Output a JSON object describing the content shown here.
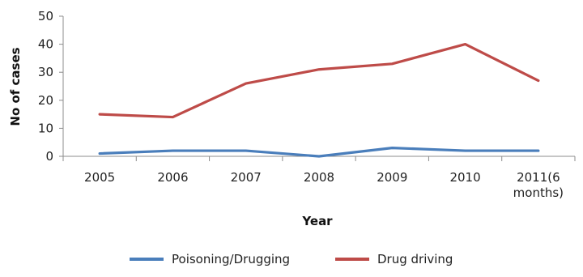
{
  "chart_data": {
    "type": "line",
    "categories": [
      "2005",
      "2006",
      "2007",
      "2008",
      "2009",
      "2010",
      "2011(6 months)"
    ],
    "category_lines": [
      [
        "2005"
      ],
      [
        "2006"
      ],
      [
        "2007"
      ],
      [
        "2008"
      ],
      [
        "2009"
      ],
      [
        "2010"
      ],
      [
        "2011(6",
        "months)"
      ]
    ],
    "series": [
      {
        "name": "Poisoning/Drugging",
        "values": [
          1,
          2,
          2,
          0,
          3,
          2,
          2
        ],
        "color": "#4a7ebb"
      },
      {
        "name": "Drug driving",
        "values": [
          15,
          14,
          26,
          31,
          33,
          40,
          27
        ],
        "color": "#be4b48"
      }
    ],
    "title": "",
    "xlabel": "Year",
    "ylabel": "No of cases",
    "ylim": [
      0,
      50
    ],
    "yticks": [
      0,
      10,
      20,
      30,
      40,
      50
    ],
    "grid": false,
    "legend_position": "bottom"
  }
}
